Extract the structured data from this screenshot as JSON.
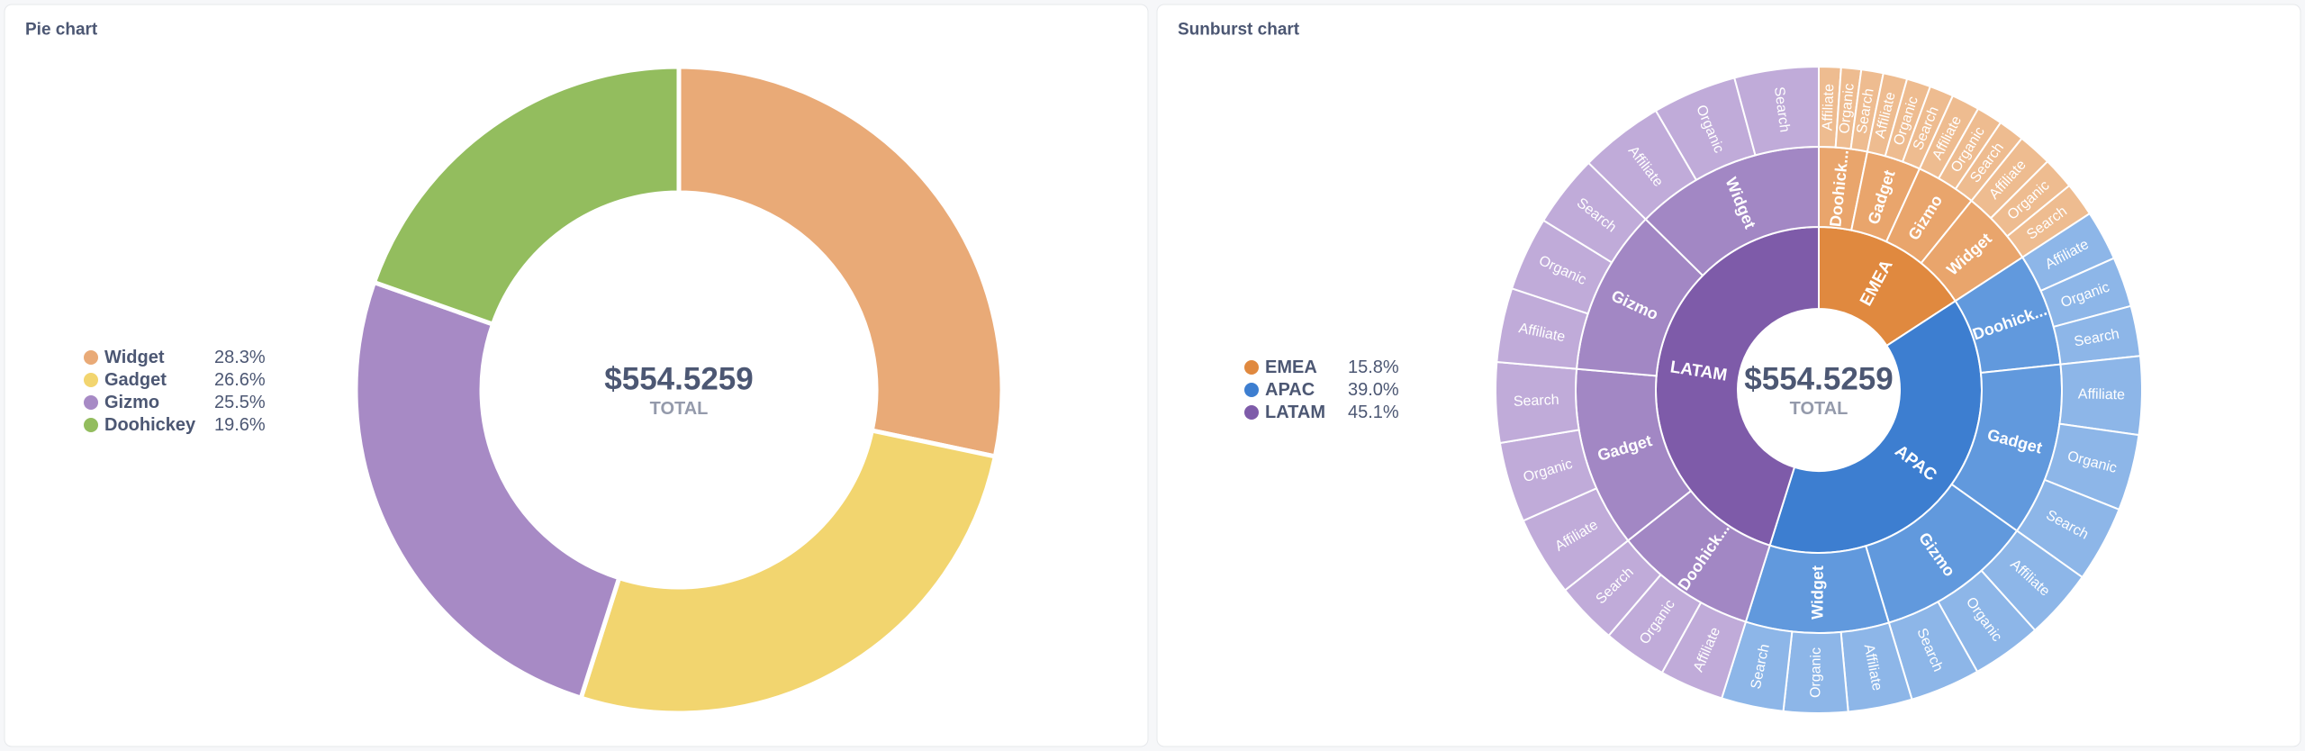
{
  "chart_data": [
    {
      "type": "pie",
      "title": "Pie chart",
      "categories": [
        "Widget",
        "Gadget",
        "Gizmo",
        "Doohickey"
      ],
      "values": [
        28.3,
        26.6,
        25.5,
        19.6
      ],
      "value_labels": [
        "28.3%",
        "26.6%",
        "25.5%",
        "19.6%"
      ],
      "colors": [
        "#E9AA77",
        "#F2D56F",
        "#A78AC5",
        "#93BD5E"
      ],
      "center_value": "$554.5259",
      "center_label": "TOTAL"
    },
    {
      "type": "sunburst",
      "title": "Sunburst chart",
      "categories": [
        "EMEA",
        "APAC",
        "LATAM"
      ],
      "values": [
        15.8,
        39.0,
        45.1
      ],
      "value_labels": [
        "15.8%",
        "39.0%",
        "45.1%"
      ],
      "colors": [
        "#E0893F",
        "#3D7ED0",
        "#7E5BA9"
      ],
      "middle_colors": [
        "#E9A56C",
        "#6199DD",
        "#A287C4"
      ],
      "outer_colors": [
        "#EEBC90",
        "#8DB6E8",
        "#C0ABD9"
      ],
      "center_value": "$554.5259",
      "center_label": "TOTAL",
      "children": [
        [
          {
            "name": "Doohick...",
            "value": 3.2,
            "children": [
              {
                "name": "Affiliate",
                "value": 1.1
              },
              {
                "name": "Organic",
                "value": 1.0
              },
              {
                "name": "Search",
                "value": 1.1
              }
            ]
          },
          {
            "name": "Gadget",
            "value": 3.6,
            "children": [
              {
                "name": "Affiliate",
                "value": 1.2
              },
              {
                "name": "Organic",
                "value": 1.2
              },
              {
                "name": "Search",
                "value": 1.2
              }
            ]
          },
          {
            "name": "Gizmo",
            "value": 4.0,
            "children": [
              {
                "name": "Affiliate",
                "value": 1.4
              },
              {
                "name": "Organic",
                "value": 1.3
              },
              {
                "name": "Search",
                "value": 1.3
              }
            ]
          },
          {
            "name": "Widget",
            "value": 5.0,
            "children": [
              {
                "name": "Affiliate",
                "value": 1.7
              },
              {
                "name": "Organic",
                "value": 1.6
              },
              {
                "name": "Search",
                "value": 1.7
              }
            ]
          }
        ],
        [
          {
            "name": "Doohick...",
            "value": 7.5,
            "children": [
              {
                "name": "Affiliate",
                "value": 2.5
              },
              {
                "name": "Organic",
                "value": 2.5
              },
              {
                "name": "Search",
                "value": 2.5
              }
            ]
          },
          {
            "name": "Gadget",
            "value": 11.5,
            "children": [
              {
                "name": "Affiliate",
                "value": 3.9
              },
              {
                "name": "Organic",
                "value": 3.8
              },
              {
                "name": "Search",
                "value": 3.8
              }
            ]
          },
          {
            "name": "Gizmo",
            "value": 10.5,
            "children": [
              {
                "name": "Affiliate",
                "value": 3.5
              },
              {
                "name": "Organic",
                "value": 3.5
              },
              {
                "name": "Search",
                "value": 3.5
              }
            ]
          },
          {
            "name": "Widget",
            "value": 9.5,
            "children": [
              {
                "name": "Affiliate",
                "value": 3.2
              },
              {
                "name": "Organic",
                "value": 3.2
              },
              {
                "name": "Search",
                "value": 3.1
              }
            ]
          }
        ],
        [
          {
            "name": "Doohick...",
            "value": 9.5,
            "children": [
              {
                "name": "Affiliate",
                "value": 3.2
              },
              {
                "name": "Organic",
                "value": 3.2
              },
              {
                "name": "Search",
                "value": 3.1
              }
            ]
          },
          {
            "name": "Gadget",
            "value": 12.0,
            "children": [
              {
                "name": "Affiliate",
                "value": 4.0
              },
              {
                "name": "Organic",
                "value": 4.0
              },
              {
                "name": "Search",
                "value": 4.0
              }
            ]
          },
          {
            "name": "Gizmo",
            "value": 11.0,
            "children": [
              {
                "name": "Affiliate",
                "value": 3.7
              },
              {
                "name": "Organic",
                "value": 3.7
              },
              {
                "name": "Search",
                "value": 3.6
              }
            ]
          },
          {
            "name": "Widget",
            "value": 12.6,
            "children": [
              {
                "name": "Affiliate",
                "value": 4.2
              },
              {
                "name": "Organic",
                "value": 4.2
              },
              {
                "name": "Search",
                "value": 4.2
              }
            ]
          }
        ]
      ]
    }
  ]
}
